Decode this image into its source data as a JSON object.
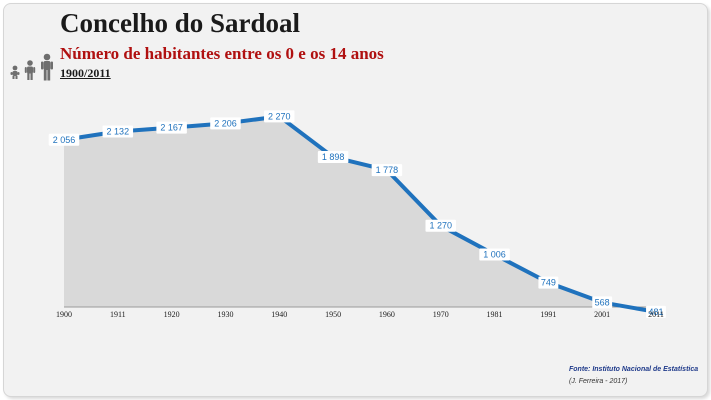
{
  "header": {
    "title": "Concelho do Sardoal",
    "subtitle": "Número de habitantes entre os 0 e os 14 anos",
    "period": "1900/2011"
  },
  "footer": {
    "source": "Fonte: Instituto Nacional de Estatística",
    "author": "(J. Ferreira - 2017)"
  },
  "icons": [
    "baby-icon",
    "child-icon",
    "adult-icon"
  ],
  "colors": {
    "line": "#1f72bd",
    "area": "#d9d9d9",
    "title": "#1a1a1a",
    "subtitle": "#b01010",
    "label": "#1f72bd"
  },
  "chart_data": {
    "type": "area",
    "x": [
      "1900",
      "1911",
      "1920",
      "1930",
      "1940",
      "1950",
      "1960",
      "1970",
      "1981",
      "1991",
      "2001",
      "2011"
    ],
    "values": [
      2056,
      2132,
      2167,
      2206,
      2270,
      1898,
      1778,
      1270,
      1006,
      749,
      568,
      481
    ],
    "value_labels": [
      "2 056",
      "2 132",
      "2 167",
      "2 206",
      "2 270",
      "1 898",
      "1 778",
      "1 270",
      "1 006",
      "749",
      "568",
      "481"
    ],
    "xlabel": "",
    "ylabel": "",
    "grid": false,
    "legend": "none"
  }
}
